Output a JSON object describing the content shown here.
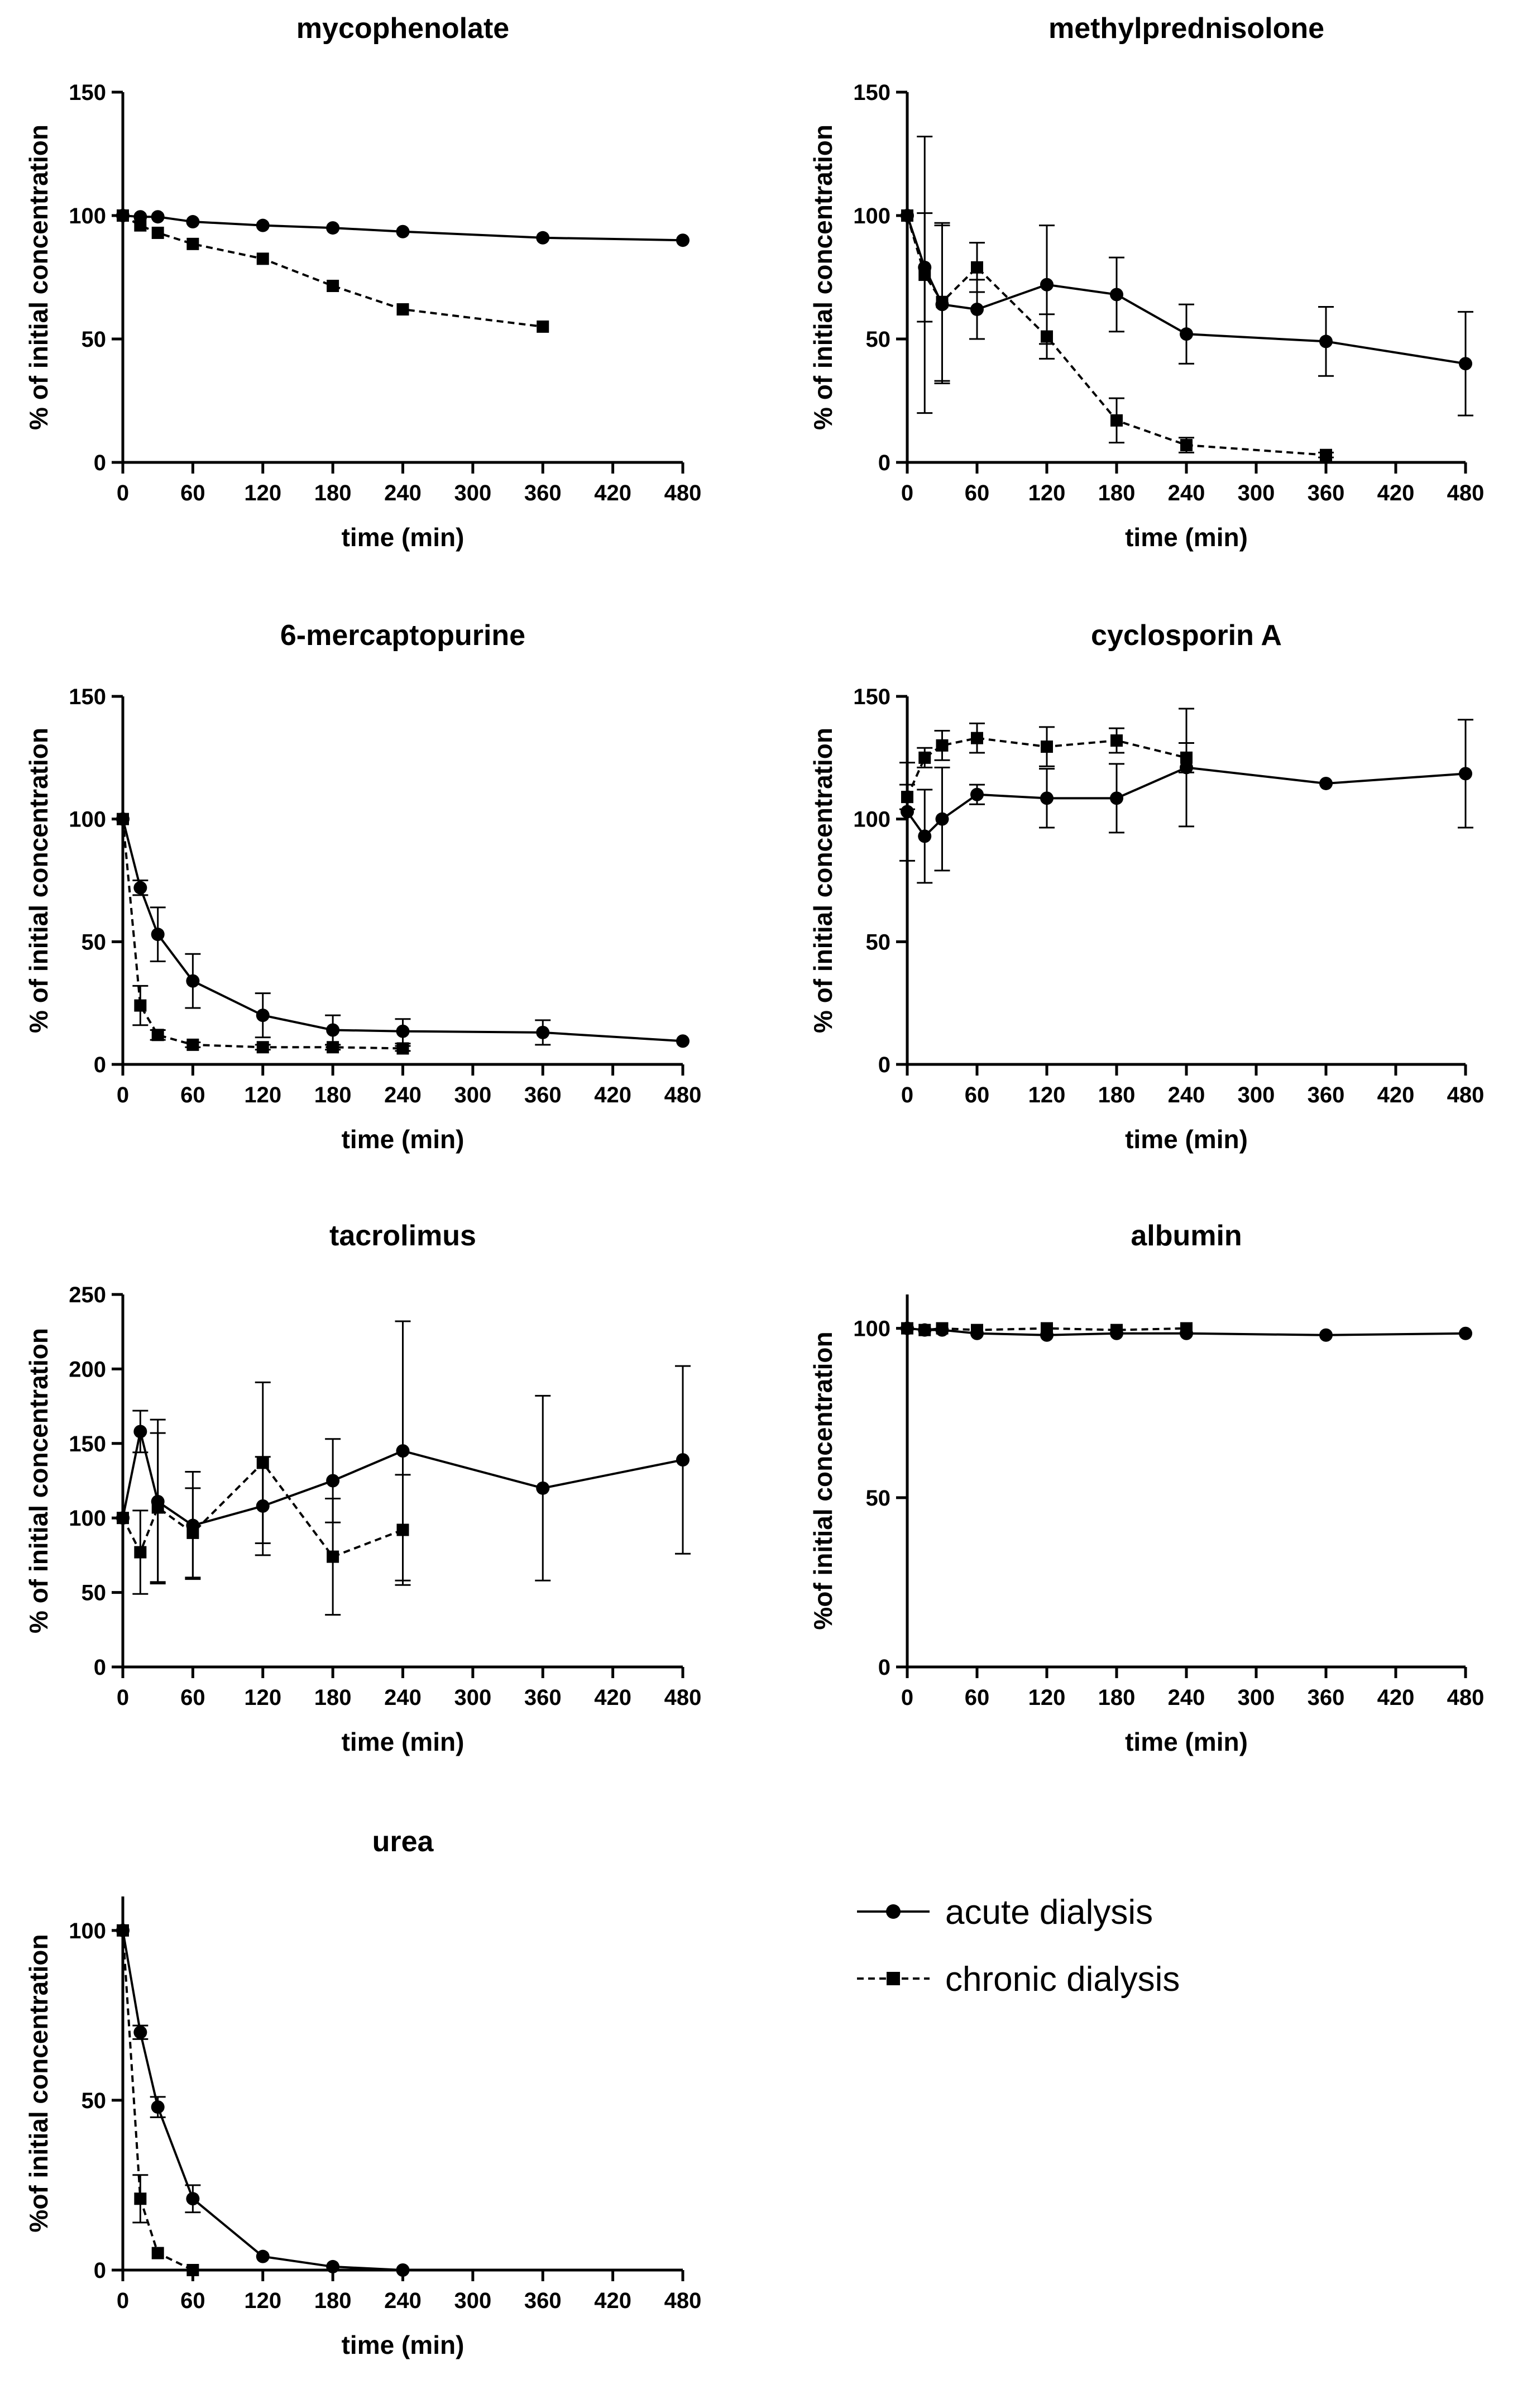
{
  "series_colors": {
    "acute": "#000000",
    "chronic": "#000000"
  },
  "legend": {
    "acute": "acute dialysis",
    "chronic": "chronic dialysis"
  },
  "chart_data": [
    {
      "type": "line",
      "title": "mycophenolate",
      "xlabel": "time (min)",
      "ylabel": "% of initial concentration",
      "xlim": [
        0,
        480
      ],
      "ylim": [
        0,
        150
      ],
      "xticks": [
        0,
        60,
        120,
        180,
        240,
        300,
        360,
        420,
        480
      ],
      "yticks": [
        0,
        50,
        100,
        150
      ],
      "series": [
        {
          "name": "acute dialysis",
          "style": "solid",
          "marker": "circle",
          "points": [
            {
              "x": 0,
              "y": 100
            },
            {
              "x": 15,
              "y": 99.5
            },
            {
              "x": 30,
              "y": 99.5
            },
            {
              "x": 60,
              "y": 97.5
            },
            {
              "x": 120,
              "y": 96
            },
            {
              "x": 180,
              "y": 95
            },
            {
              "x": 240,
              "y": 93.5
            },
            {
              "x": 360,
              "y": 91
            },
            {
              "x": 480,
              "y": 90
            }
          ]
        },
        {
          "name": "chronic dialysis",
          "style": "dashed",
          "marker": "square",
          "points": [
            {
              "x": 0,
              "y": 100
            },
            {
              "x": 15,
              "y": 96
            },
            {
              "x": 30,
              "y": 93
            },
            {
              "x": 60,
              "y": 88.5
            },
            {
              "x": 120,
              "y": 82.5
            },
            {
              "x": 180,
              "y": 71.5
            },
            {
              "x": 240,
              "y": 62
            },
            {
              "x": 360,
              "y": 55
            }
          ]
        }
      ]
    },
    {
      "type": "line",
      "title": "methylprednisolone",
      "xlabel": "time (min)",
      "ylabel": "% of initial concentration",
      "xlim": [
        0,
        480
      ],
      "ylim": [
        0,
        150
      ],
      "xticks": [
        0,
        60,
        120,
        180,
        240,
        300,
        360,
        420,
        480
      ],
      "yticks": [
        0,
        50,
        100,
        150
      ],
      "series": [
        {
          "name": "acute dialysis",
          "style": "solid",
          "marker": "circle",
          "points": [
            {
              "x": 0,
              "y": 100
            },
            {
              "x": 15,
              "y": 79,
              "err": 22
            },
            {
              "x": 30,
              "y": 64,
              "err": 32
            },
            {
              "x": 60,
              "y": 62,
              "err": 12
            },
            {
              "x": 120,
              "y": 72,
              "err": 24
            },
            {
              "x": 180,
              "y": 68,
              "err": 15
            },
            {
              "x": 240,
              "y": 52,
              "err": 12
            },
            {
              "x": 360,
              "y": 49,
              "err": 14
            },
            {
              "x": 480,
              "y": 40,
              "err": 21
            }
          ]
        },
        {
          "name": "chronic dialysis",
          "style": "dashed",
          "marker": "square",
          "points": [
            {
              "x": 0,
              "y": 100
            },
            {
              "x": 15,
              "y": 76,
              "err": 56
            },
            {
              "x": 30,
              "y": 65,
              "err": 32
            },
            {
              "x": 60,
              "y": 79,
              "err": 10
            },
            {
              "x": 120,
              "y": 51,
              "err": 9
            },
            {
              "x": 180,
              "y": 17,
              "err": 9
            },
            {
              "x": 240,
              "y": 7,
              "err": 3
            },
            {
              "x": 360,
              "y": 3,
              "err": 1
            }
          ]
        }
      ]
    },
    {
      "type": "line",
      "title": "6-mercaptopurine",
      "xlabel": "time (min)",
      "ylabel": "% of initial concentration",
      "xlim": [
        0,
        480
      ],
      "ylim": [
        0,
        150
      ],
      "xticks": [
        0,
        60,
        120,
        180,
        240,
        300,
        360,
        420,
        480
      ],
      "yticks": [
        0,
        50,
        100,
        150
      ],
      "series": [
        {
          "name": "acute dialysis",
          "style": "solid",
          "marker": "circle",
          "points": [
            {
              "x": 0,
              "y": 100
            },
            {
              "x": 15,
              "y": 72,
              "err": 3
            },
            {
              "x": 30,
              "y": 53,
              "err": 11
            },
            {
              "x": 60,
              "y": 34,
              "err": 11
            },
            {
              "x": 120,
              "y": 20,
              "err": 9
            },
            {
              "x": 180,
              "y": 14,
              "err": 6
            },
            {
              "x": 240,
              "y": 13.5,
              "err": 5
            },
            {
              "x": 360,
              "y": 13,
              "err": 5
            },
            {
              "x": 480,
              "y": 9.5
            }
          ]
        },
        {
          "name": "chronic dialysis",
          "style": "dashed",
          "marker": "square",
          "points": [
            {
              "x": 0,
              "y": 100
            },
            {
              "x": 15,
              "y": 24,
              "err": 8
            },
            {
              "x": 30,
              "y": 12,
              "err": 2
            },
            {
              "x": 60,
              "y": 8,
              "err": 1
            },
            {
              "x": 120,
              "y": 7,
              "err": 1
            },
            {
              "x": 180,
              "y": 7,
              "err": 1
            },
            {
              "x": 240,
              "y": 6.5,
              "err": 1
            }
          ]
        }
      ]
    },
    {
      "type": "line",
      "title": "cyclosporin  A",
      "xlabel": "time (min)",
      "ylabel": "% of initial concentration",
      "xlim": [
        0,
        480
      ],
      "ylim": [
        0,
        150
      ],
      "xticks": [
        0,
        60,
        120,
        180,
        240,
        300,
        360,
        420,
        480
      ],
      "yticks": [
        0,
        50,
        100,
        150
      ],
      "series": [
        {
          "name": "acute dialysis",
          "style": "solid",
          "marker": "circle",
          "points": [
            {
              "x": 0,
              "y": 103,
              "err": 20
            },
            {
              "x": 15,
              "y": 93,
              "err": 19
            },
            {
              "x": 30,
              "y": 100,
              "err": 21
            },
            {
              "x": 60,
              "y": 110,
              "err": 4
            },
            {
              "x": 120,
              "y": 108.5,
              "err": 12
            },
            {
              "x": 180,
              "y": 108.5,
              "err": 14
            },
            {
              "x": 240,
              "y": 121,
              "err": 24
            },
            {
              "x": 360,
              "y": 114.5
            },
            {
              "x": 480,
              "y": 118.5,
              "err": 22
            }
          ]
        },
        {
          "name": "chronic dialysis",
          "style": "dashed",
          "marker": "square",
          "points": [
            {
              "x": 0,
              "y": 109,
              "err": 5
            },
            {
              "x": 15,
              "y": 125,
              "err": 4
            },
            {
              "x": 30,
              "y": 130,
              "err": 6
            },
            {
              "x": 60,
              "y": 133,
              "err": 6
            },
            {
              "x": 120,
              "y": 129.5,
              "err": 8
            },
            {
              "x": 180,
              "y": 132,
              "err": 5
            },
            {
              "x": 240,
              "y": 125,
              "err": 6
            }
          ]
        }
      ]
    },
    {
      "type": "line",
      "title": "tacrolimus",
      "xlabel": "time (min)",
      "ylabel": "% of initial concentration",
      "xlim": [
        0,
        480
      ],
      "ylim": [
        0,
        250
      ],
      "xticks": [
        0,
        60,
        120,
        180,
        240,
        300,
        360,
        420,
        480
      ],
      "yticks": [
        0,
        50,
        100,
        150,
        200,
        250
      ],
      "series": [
        {
          "name": "acute dialysis",
          "style": "solid",
          "marker": "circle",
          "points": [
            {
              "x": 0,
              "y": 100
            },
            {
              "x": 15,
              "y": 158,
              "err": 14
            },
            {
              "x": 30,
              "y": 111,
              "err": 55
            },
            {
              "x": 60,
              "y": 95,
              "err": 36
            },
            {
              "x": 120,
              "y": 108,
              "err": 33
            },
            {
              "x": 180,
              "y": 125,
              "err": 28
            },
            {
              "x": 240,
              "y": 145,
              "err": 87
            },
            {
              "x": 360,
              "y": 120,
              "err": 62
            },
            {
              "x": 480,
              "y": 139,
              "err": 63
            }
          ]
        },
        {
          "name": "chronic dialysis",
          "style": "dashed",
          "marker": "square",
          "points": [
            {
              "x": 0,
              "y": 100
            },
            {
              "x": 15,
              "y": 77,
              "err": 28
            },
            {
              "x": 30,
              "y": 107,
              "err": 50
            },
            {
              "x": 60,
              "y": 90,
              "err": 30
            },
            {
              "x": 120,
              "y": 137,
              "err": 54
            },
            {
              "x": 180,
              "y": 74,
              "err": 39
            },
            {
              "x": 240,
              "y": 92,
              "err": 37
            }
          ]
        }
      ]
    },
    {
      "type": "line",
      "title": "albumin",
      "xlabel": "time (min)",
      "ylabel": "%of initial concentration",
      "xlim": [
        0,
        480
      ],
      "ylim": [
        0,
        110
      ],
      "xticks": [
        0,
        60,
        120,
        180,
        240,
        300,
        360,
        420,
        480
      ],
      "yticks": [
        0,
        50,
        100
      ],
      "series": [
        {
          "name": "acute dialysis",
          "style": "solid",
          "marker": "circle",
          "points": [
            {
              "x": 0,
              "y": 100
            },
            {
              "x": 15,
              "y": 99.5
            },
            {
              "x": 30,
              "y": 99.5
            },
            {
              "x": 60,
              "y": 98.5
            },
            {
              "x": 120,
              "y": 98
            },
            {
              "x": 180,
              "y": 98.5
            },
            {
              "x": 240,
              "y": 98.5
            },
            {
              "x": 360,
              "y": 98
            },
            {
              "x": 480,
              "y": 98.5
            }
          ]
        },
        {
          "name": "chronic dialysis",
          "style": "dashed",
          "marker": "square",
          "points": [
            {
              "x": 0,
              "y": 100
            },
            {
              "x": 15,
              "y": 99.5
            },
            {
              "x": 30,
              "y": 100
            },
            {
              "x": 60,
              "y": 99.5
            },
            {
              "x": 120,
              "y": 100
            },
            {
              "x": 180,
              "y": 99.5
            },
            {
              "x": 240,
              "y": 100
            }
          ]
        }
      ]
    },
    {
      "type": "line",
      "title": "urea",
      "xlabel": "time (min)",
      "ylabel": "%of initial concentration",
      "xlim": [
        0,
        480
      ],
      "ylim": [
        0,
        110
      ],
      "xticks": [
        0,
        60,
        120,
        180,
        240,
        300,
        360,
        420,
        480
      ],
      "yticks": [
        0,
        50,
        100
      ],
      "series": [
        {
          "name": "acute dialysis",
          "style": "solid",
          "marker": "circle",
          "points": [
            {
              "x": 0,
              "y": 100
            },
            {
              "x": 15,
              "y": 70,
              "err": 2
            },
            {
              "x": 30,
              "y": 48,
              "err": 3
            },
            {
              "x": 60,
              "y": 21,
              "err": 4
            },
            {
              "x": 120,
              "y": 4
            },
            {
              "x": 180,
              "y": 1
            },
            {
              "x": 240,
              "y": 0
            }
          ]
        },
        {
          "name": "chronic dialysis",
          "style": "dashed",
          "marker": "square",
          "points": [
            {
              "x": 0,
              "y": 100
            },
            {
              "x": 15,
              "y": 21,
              "err": 7
            },
            {
              "x": 30,
              "y": 5
            },
            {
              "x": 60,
              "y": 0
            }
          ]
        }
      ]
    }
  ]
}
